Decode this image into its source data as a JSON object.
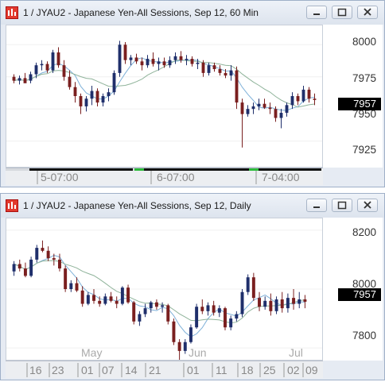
{
  "windows": [
    {
      "title": "1 / JYAU2 - Japanese Yen-All Sessions, Sep 12, 60 Min",
      "last_price": "7957",
      "y_labels": [
        "8000",
        "7975",
        "7950",
        "7925"
      ],
      "x_labels": [
        "5-07:00",
        "6-07:00",
        "7-04:00"
      ],
      "controls": {
        "minimize": "minimize",
        "restore": "restore",
        "close": "close"
      }
    },
    {
      "title": "1 / JYAU2 - Japanese Yen-All Sessions, Sep 12, Daily",
      "last_price": "7957",
      "y_labels": [
        "8200",
        "8000",
        "7800"
      ],
      "x_labels": [
        "16",
        "23",
        "01",
        "07",
        "14",
        "21",
        "01",
        "11",
        "18",
        "25",
        "02",
        "09"
      ],
      "month_labels": [
        "May",
        "Jun",
        "Jul"
      ],
      "controls": {
        "minimize": "minimize",
        "restore": "restore",
        "close": "close"
      }
    }
  ],
  "chart_data": [
    {
      "type": "candlestick",
      "title": "1 / JYAU2 - Japanese Yen-All Sessions, Sep 12, 60 Min",
      "ylim": [
        7905,
        8015
      ],
      "yticks": [
        8000,
        7975,
        7950,
        7925
      ],
      "x_labels": [
        "5-07:00",
        "6-07:00",
        "7-04:00"
      ],
      "colors": {
        "up": "#1f2f6b",
        "down": "#7a1f1f",
        "ma_fast": "#7fb1d9",
        "ma_slow": "#8fb39a"
      },
      "candles": [
        [
          7975,
          7977,
          7970,
          7972
        ],
        [
          7972,
          7976,
          7969,
          7974
        ],
        [
          7974,
          7978,
          7971,
          7970
        ],
        [
          7972,
          7979,
          7970,
          7977
        ],
        [
          7977,
          7986,
          7974,
          7984
        ],
        [
          7984,
          7988,
          7980,
          7985
        ],
        [
          7985,
          7987,
          7978,
          7980
        ],
        [
          7980,
          7996,
          7978,
          7994
        ],
        [
          7994,
          7998,
          7982,
          7984
        ],
        [
          7984,
          7988,
          7972,
          7975
        ],
        [
          7975,
          7980,
          7965,
          7967
        ],
        [
          7967,
          7971,
          7955,
          7960
        ],
        [
          7960,
          7962,
          7946,
          7952
        ],
        [
          7952,
          7960,
          7948,
          7958
        ],
        [
          7958,
          7968,
          7953,
          7964
        ],
        [
          7964,
          7966,
          7952,
          7955
        ],
        [
          7955,
          7962,
          7952,
          7960
        ],
        [
          7960,
          7966,
          7956,
          7963
        ],
        [
          7963,
          7980,
          7961,
          7978
        ],
        [
          7978,
          8003,
          7975,
          8000
        ],
        [
          8000,
          8002,
          7985,
          7988
        ],
        [
          7988,
          7992,
          7984,
          7990
        ],
        [
          7990,
          7993,
          7985,
          7987
        ],
        [
          7987,
          7990,
          7980,
          7984
        ],
        [
          7984,
          7992,
          7982,
          7989
        ],
        [
          7989,
          7994,
          7983,
          7985
        ],
        [
          7985,
          7990,
          7980,
          7987
        ],
        [
          7987,
          7990,
          7982,
          7984
        ],
        [
          7984,
          7991,
          7982,
          7988
        ],
        [
          7988,
          7994,
          7985,
          7991
        ],
        [
          7991,
          7995,
          7986,
          7988
        ],
        [
          7988,
          7992,
          7984,
          7989
        ],
        [
          7989,
          7991,
          7983,
          7985
        ],
        [
          7985,
          7989,
          7981,
          7986
        ],
        [
          7986,
          7988,
          7975,
          7978
        ],
        [
          7978,
          7986,
          7976,
          7984
        ],
        [
          7984,
          7986,
          7979,
          7981
        ],
        [
          7981,
          7984,
          7976,
          7978
        ],
        [
          7978,
          7981,
          7974,
          7976
        ],
        [
          7976,
          7984,
          7972,
          7980
        ],
        [
          7980,
          7983,
          7950,
          7955
        ],
        [
          7955,
          7958,
          7920,
          7946
        ],
        [
          7946,
          7953,
          7944,
          7950
        ],
        [
          7950,
          7955,
          7946,
          7952
        ],
        [
          7952,
          7958,
          7949,
          7954
        ],
        [
          7954,
          7958,
          7950,
          7951
        ],
        [
          7951,
          7955,
          7946,
          7950
        ],
        [
          7950,
          7952,
          7940,
          7943
        ],
        [
          7943,
          7950,
          7935,
          7947
        ],
        [
          7947,
          7955,
          7944,
          7953
        ],
        [
          7953,
          7963,
          7950,
          7960
        ],
        [
          7960,
          7962,
          7953,
          7956
        ],
        [
          7956,
          7968,
          7955,
          7965
        ],
        [
          7965,
          7967,
          7955,
          7958
        ],
        [
          7958,
          7962,
          7953,
          7957
        ]
      ]
    },
    {
      "type": "candlestick",
      "title": "1 / JYAU2 - Japanese Yen-All Sessions, Sep 12, Daily",
      "ylim": [
        7760,
        8240
      ],
      "yticks": [
        8200,
        8000,
        7800
      ],
      "x_labels": [
        "16",
        "23",
        "01",
        "07",
        "14",
        "21",
        "01",
        "11",
        "18",
        "25",
        "02",
        "09"
      ],
      "month_labels": [
        "May",
        "Jun",
        "Jul"
      ],
      "colors": {
        "up": "#1f2f6b",
        "down": "#7a1f1f",
        "ma_fast": "#7fb1d9",
        "ma_slow": "#8fb39a"
      },
      "candles": [
        [
          8060,
          8095,
          8045,
          8085
        ],
        [
          8085,
          8100,
          8060,
          8070
        ],
        [
          8070,
          8090,
          8040,
          8045
        ],
        [
          8045,
          8110,
          8040,
          8100
        ],
        [
          8100,
          8150,
          8090,
          8140
        ],
        [
          8140,
          8165,
          8125,
          8130
        ],
        [
          8130,
          8145,
          8095,
          8105
        ],
        [
          8105,
          8120,
          8080,
          8100
        ],
        [
          8100,
          8120,
          8060,
          8070
        ],
        [
          8070,
          8080,
          7990,
          8000
        ],
        [
          8000,
          8030,
          7990,
          8020
        ],
        [
          8020,
          8040,
          7990,
          7995
        ],
        [
          7995,
          8010,
          7940,
          7950
        ],
        [
          7950,
          7990,
          7945,
          7980
        ],
        [
          7980,
          8000,
          7950,
          7960
        ],
        [
          7960,
          7975,
          7940,
          7950
        ],
        [
          7950,
          7985,
          7945,
          7975
        ],
        [
          7975,
          7990,
          7955,
          7960
        ],
        [
          7960,
          7975,
          7935,
          7950
        ],
        [
          7950,
          8010,
          7945,
          8005
        ],
        [
          8005,
          8015,
          7950,
          7955
        ],
        [
          7955,
          7960,
          7880,
          7890
        ],
        [
          7890,
          7925,
          7875,
          7915
        ],
        [
          7915,
          7950,
          7905,
          7935
        ],
        [
          7935,
          7960,
          7920,
          7955
        ],
        [
          7955,
          7965,
          7930,
          7940
        ],
        [
          7940,
          7955,
          7920,
          7945
        ],
        [
          7945,
          7950,
          7880,
          7890
        ],
        [
          7890,
          7900,
          7810,
          7820
        ],
        [
          7820,
          7830,
          7755,
          7790
        ],
        [
          7790,
          7830,
          7780,
          7820
        ],
        [
          7820,
          7880,
          7815,
          7870
        ],
        [
          7870,
          7950,
          7865,
          7940
        ],
        [
          7940,
          7965,
          7915,
          7925
        ],
        [
          7925,
          7955,
          7910,
          7945
        ],
        [
          7945,
          7960,
          7910,
          7920
        ],
        [
          7920,
          7945,
          7905,
          7935
        ],
        [
          7935,
          7940,
          7860,
          7870
        ],
        [
          7870,
          7910,
          7860,
          7900
        ],
        [
          7900,
          7925,
          7890,
          7915
        ],
        [
          7915,
          8000,
          7905,
          7990
        ],
        [
          7990,
          8050,
          7980,
          8040
        ],
        [
          8040,
          8055,
          7960,
          7970
        ],
        [
          7970,
          7990,
          7925,
          7940
        ],
        [
          7940,
          7975,
          7930,
          7960
        ],
        [
          7960,
          7985,
          7910,
          7925
        ],
        [
          7925,
          7975,
          7915,
          7965
        ],
        [
          7965,
          7990,
          7920,
          7935
        ],
        [
          7935,
          7985,
          7920,
          7970
        ],
        [
          7970,
          8000,
          7930,
          7950
        ],
        [
          7950,
          7990,
          7935,
          7965
        ],
        [
          7965,
          7980,
          7935,
          7957
        ]
      ]
    }
  ]
}
